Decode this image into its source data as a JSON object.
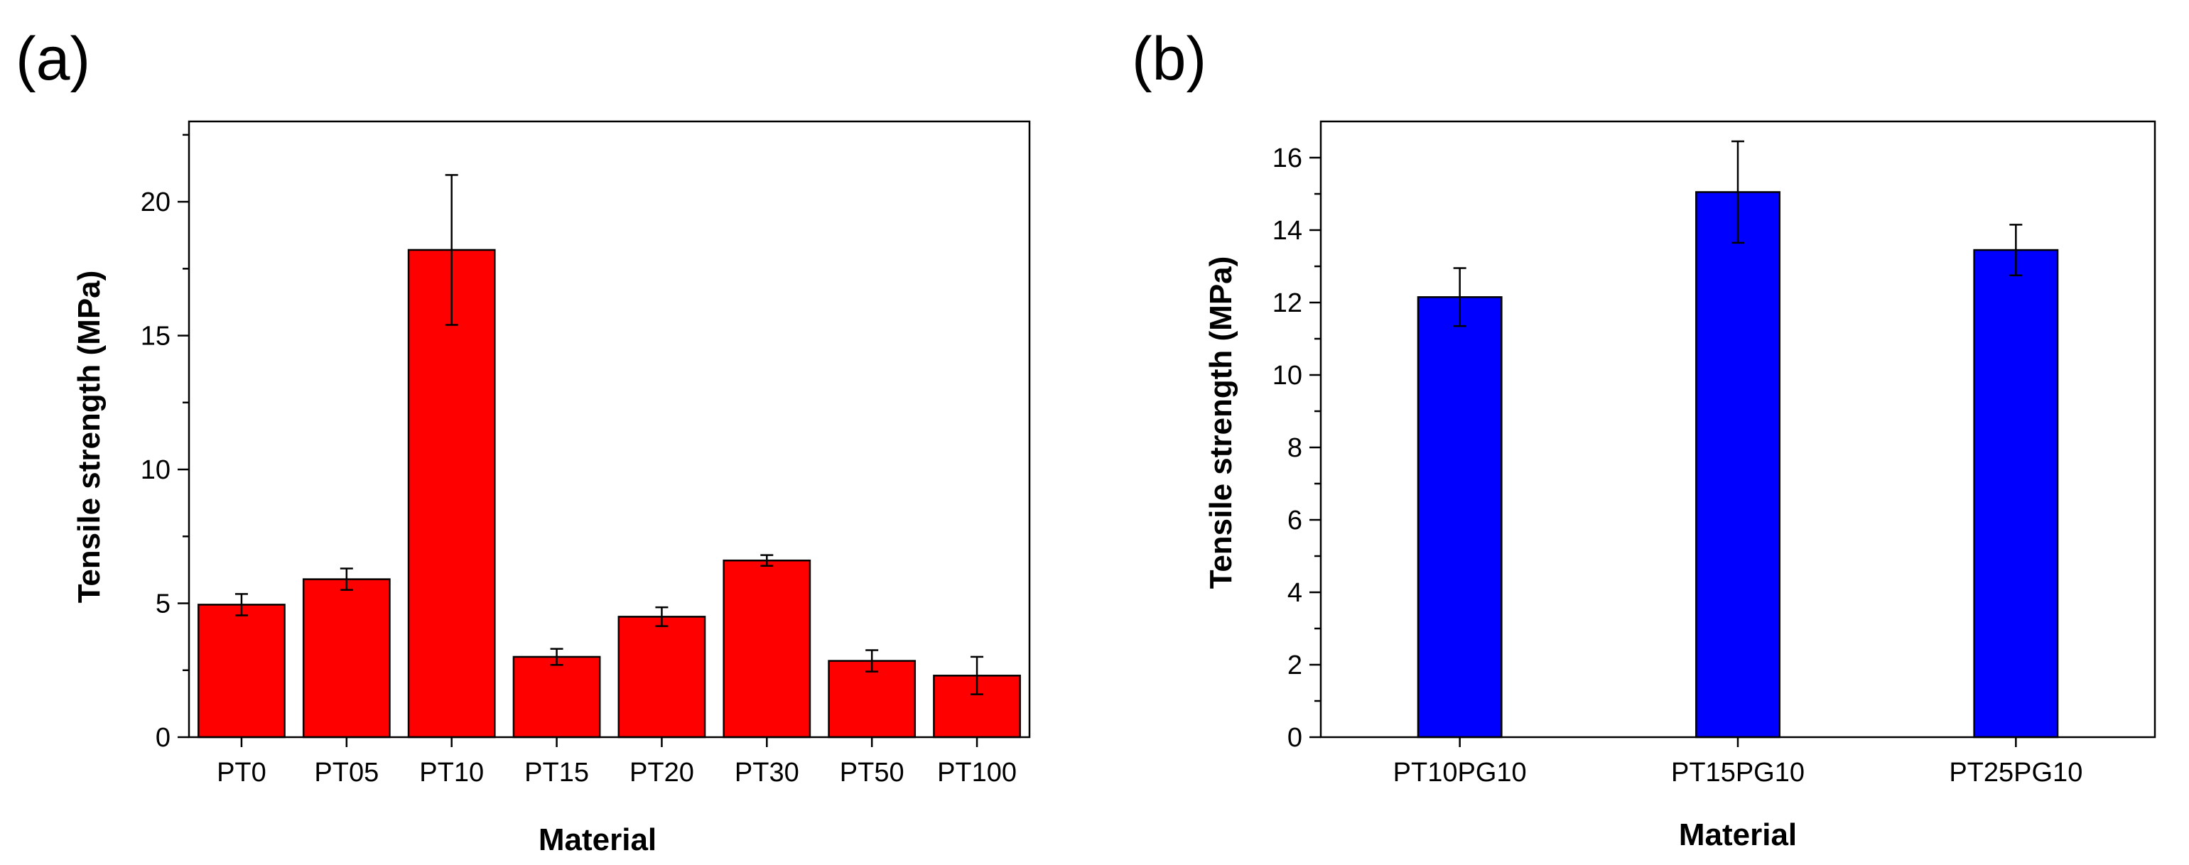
{
  "chart_data": [
    {
      "panel_label": "(a)",
      "type": "bar",
      "title": "",
      "xlabel": "Material",
      "ylabel": "Tensile strength (MPa)",
      "categories": [
        "PT0",
        "PT05",
        "PT10",
        "PT15",
        "PT20",
        "PT30",
        "PT50",
        "PT100"
      ],
      "values": [
        4.95,
        5.9,
        18.2,
        3.0,
        4.5,
        6.6,
        2.85,
        2.3
      ],
      "errors": [
        0.4,
        0.4,
        2.8,
        0.3,
        0.35,
        0.2,
        0.4,
        0.7
      ],
      "ylim": [
        0,
        23
      ],
      "yticks": [
        0,
        5,
        10,
        15,
        20
      ],
      "ytick_labels": [
        "0",
        "5",
        "10",
        "15",
        "20"
      ],
      "bar_color": "#ff0000",
      "grid": false
    },
    {
      "panel_label": "(b)",
      "type": "bar",
      "title": "",
      "xlabel": "Material",
      "ylabel": "Tensile strength (MPa)",
      "categories": [
        "PT10PG10",
        "PT15PG10",
        "PT25PG10"
      ],
      "values": [
        12.15,
        15.05,
        13.45
      ],
      "errors": [
        0.8,
        1.4,
        0.7
      ],
      "ylim": [
        0,
        17
      ],
      "yticks": [
        0,
        2,
        4,
        6,
        8,
        10,
        12,
        14,
        16
      ],
      "ytick_labels": [
        "0",
        "2",
        "4",
        "6",
        "8",
        "10",
        "12",
        "14",
        "16"
      ],
      "bar_color": "#0000ff",
      "grid": false
    }
  ]
}
